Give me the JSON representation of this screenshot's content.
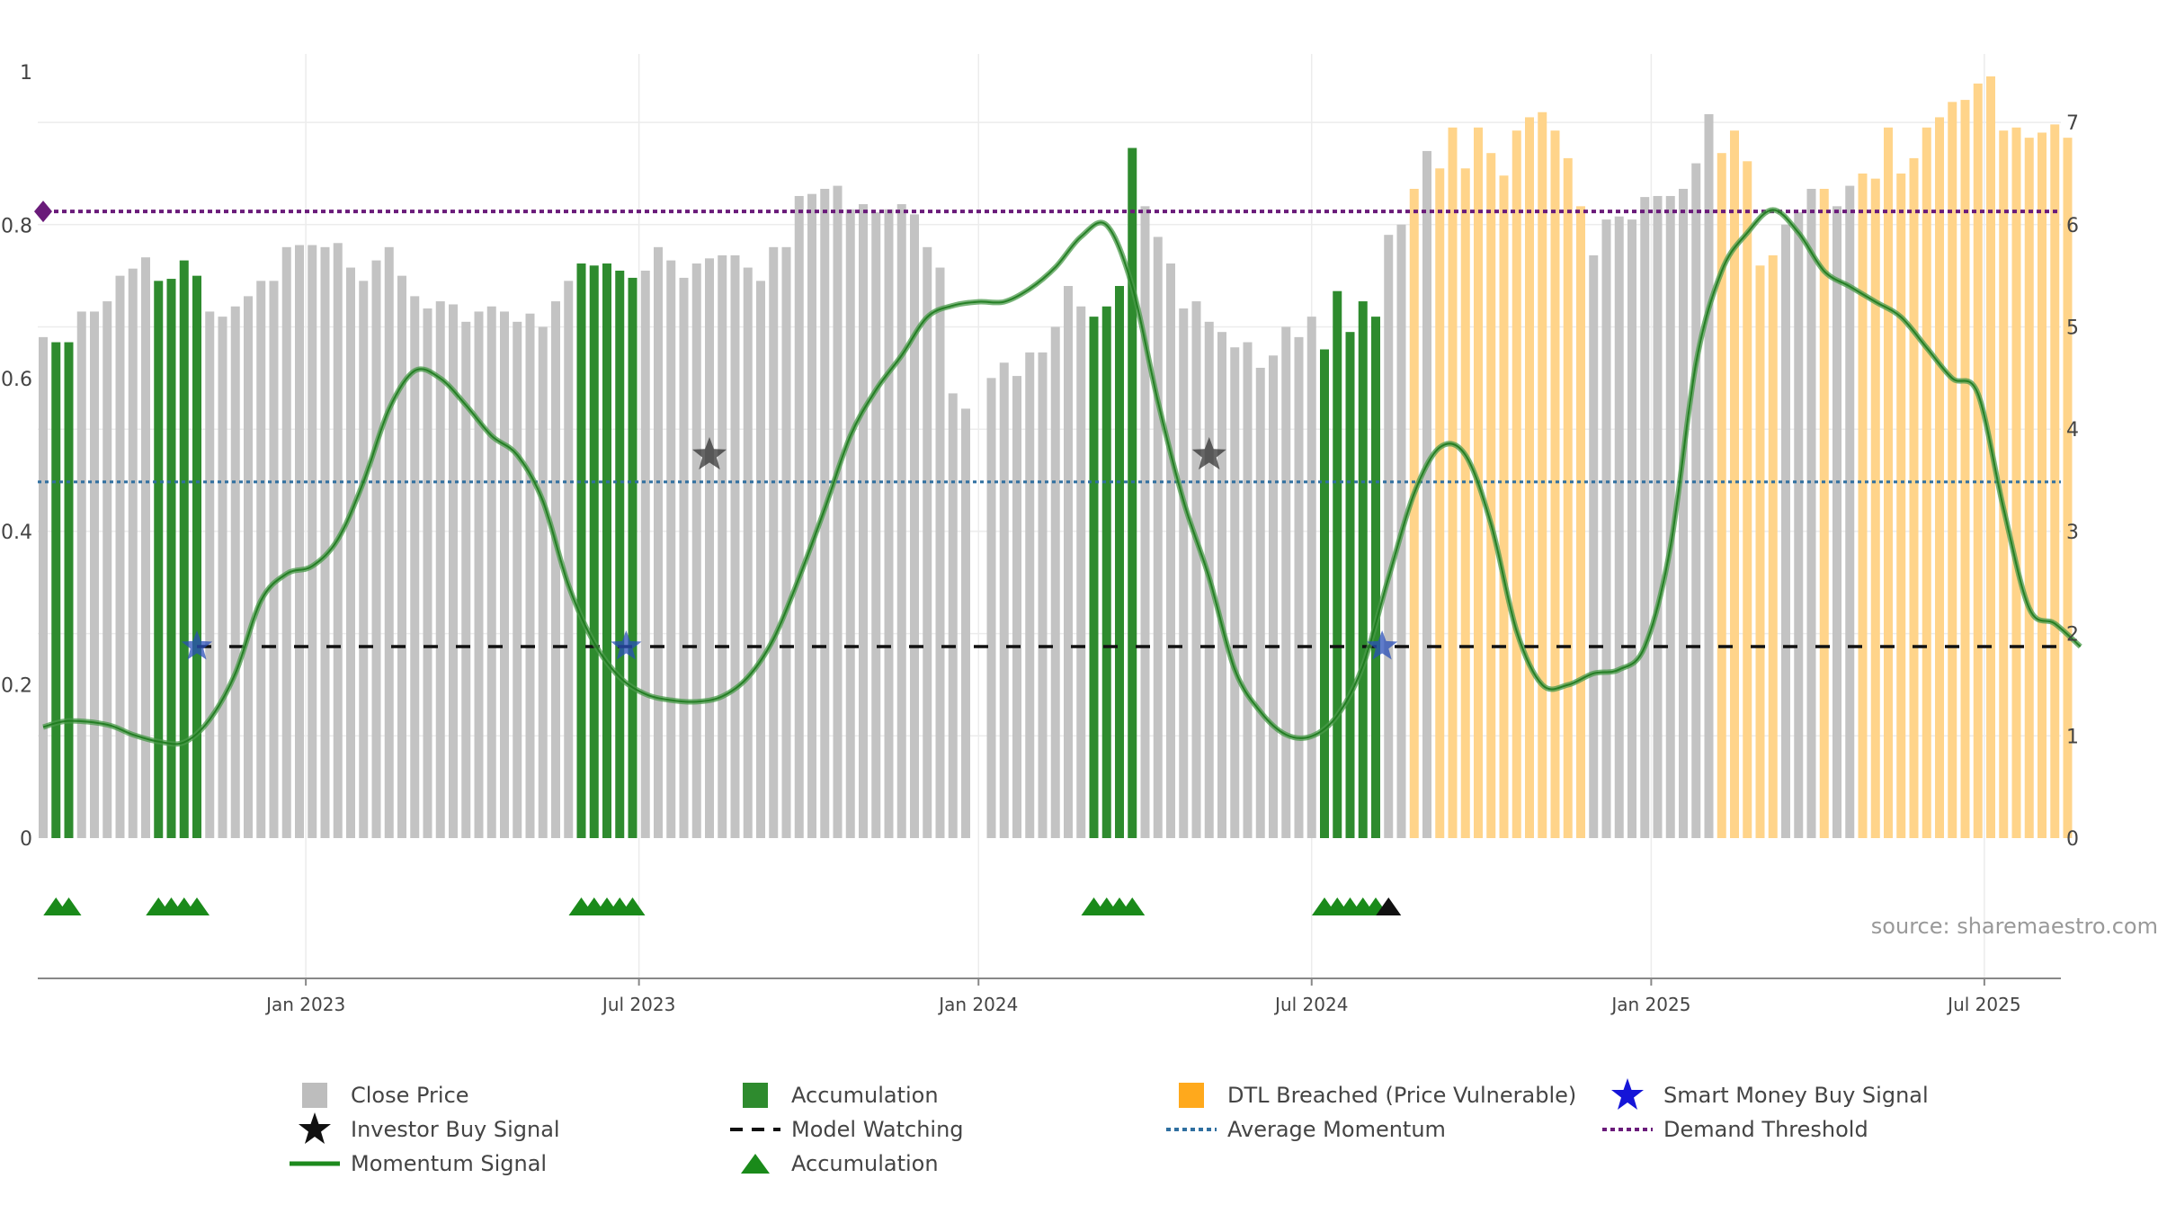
{
  "chart_data": {
    "type": "bar",
    "title": "",
    "xlabel": "",
    "ylabel": "",
    "left_axis": {
      "ticks": [
        "0",
        "0.2",
        "0.4",
        "0.6",
        "0.8",
        "1"
      ],
      "ylim": [
        0,
        1
      ]
    },
    "right_axis": {
      "ticks": [
        "0",
        "1",
        "2",
        "3",
        "4",
        "5",
        "6",
        "7"
      ],
      "ylim": [
        0,
        7.4
      ]
    },
    "x_ticks": [
      {
        "label": "Jan 2023",
        "week": 20.5
      },
      {
        "label": "Jul 2023",
        "week": 46.5
      },
      {
        "label": "Jan 2024",
        "week": 73
      },
      {
        "label": "Jul 2024",
        "week": 99
      },
      {
        "label": "Jan 2025",
        "week": 125.5
      },
      {
        "label": "Jul 2025",
        "week": 151.5
      }
    ],
    "grid": true,
    "colors": {
      "close": "#c3c3c3",
      "accumulation": "#2e8b2e",
      "dtl": "#ffd48a",
      "momentum": "#2e8b2e",
      "average": "#2f6fa0",
      "threshold": "#6a1b7a",
      "watching": "#000000"
    },
    "series": [
      {
        "name": "Close Price",
        "axis": "right",
        "values": [
          4.9,
          4.85,
          4.85,
          5.15,
          5.15,
          5.25,
          5.5,
          5.57,
          5.68,
          5.45,
          5.47,
          5.65,
          5.5,
          5.15,
          5.1,
          5.2,
          5.3,
          5.45,
          5.45,
          5.78,
          5.8,
          5.8,
          5.78,
          5.82,
          5.58,
          5.45,
          5.65,
          5.78,
          5.5,
          5.3,
          5.18,
          5.25,
          5.22,
          5.05,
          5.15,
          5.2,
          5.15,
          5.05,
          5.13,
          5.0,
          5.25,
          5.45,
          5.62,
          5.6,
          5.62,
          5.55,
          5.48,
          5.55,
          5.78,
          5.65,
          5.48,
          5.62,
          5.67,
          5.7,
          5.7,
          5.58,
          5.45,
          5.78,
          5.78,
          6.28,
          6.3,
          6.35,
          6.38,
          6.15,
          6.2,
          6.12,
          6.15,
          6.2,
          6.1,
          5.78,
          5.58,
          4.35,
          4.2,
          0,
          4.5,
          4.65,
          4.52,
          4.75,
          4.75,
          5.0,
          5.4,
          5.2,
          5.1,
          5.2,
          5.4,
          6.75,
          6.18,
          5.88,
          5.62,
          5.18,
          5.25,
          5.05,
          4.95,
          4.8,
          4.85,
          4.6,
          4.72,
          5.0,
          4.9,
          5.1,
          4.78,
          5.35,
          4.95,
          5.25,
          5.1,
          5.9,
          6.0,
          6.35,
          6.72,
          6.55,
          6.95,
          6.55,
          6.95,
          6.7,
          6.48,
          6.92,
          7.05,
          7.1,
          6.92,
          6.65,
          6.18,
          5.7,
          6.05,
          6.08,
          6.05,
          6.27,
          6.28,
          6.28,
          6.35,
          6.6,
          7.08,
          6.7,
          6.92,
          6.62,
          5.6,
          5.7,
          6.0,
          6.12,
          6.35,
          6.35,
          6.18,
          6.38,
          6.5,
          6.45,
          6.95,
          6.5,
          6.65,
          6.95,
          7.05,
          7.2,
          7.22,
          7.38,
          7.45,
          6.92,
          6.95,
          6.85,
          6.9,
          6.98,
          6.85
        ]
      },
      {
        "name": "Accumulation",
        "axis": "right",
        "weeks": [
          1,
          2,
          9,
          10,
          11,
          12,
          42,
          43,
          44,
          45,
          46,
          82,
          83,
          84,
          85,
          100,
          101,
          102,
          103,
          104
        ]
      },
      {
        "name": "DTL Breached (Price Vulnerable)",
        "axis": "right",
        "weeks": [
          85,
          107,
          109,
          110,
          111,
          112,
          113,
          114,
          115,
          116,
          117,
          118,
          119,
          120,
          131,
          132,
          133,
          134,
          135,
          139,
          142,
          143,
          144,
          145,
          146,
          147,
          148,
          149,
          150,
          151,
          152,
          153,
          154,
          155,
          156,
          157,
          158,
          159
        ]
      },
      {
        "name": "Momentum Signal",
        "axis": "left",
        "x": [
          0,
          2,
          5,
          7,
          9,
          11,
          13,
          15,
          17,
          19,
          21,
          23,
          25,
          27,
          29,
          31,
          33,
          35,
          37,
          39,
          41,
          43,
          45,
          47,
          49,
          51,
          53,
          55,
          57,
          59,
          61,
          63,
          65,
          67,
          69,
          71,
          73,
          75,
          77,
          79,
          81,
          83,
          85,
          87,
          89,
          91,
          93,
          95,
          97,
          99,
          101,
          103,
          105,
          107,
          109,
          111,
          113,
          115,
          117,
          119,
          121,
          123,
          125,
          127,
          129,
          131,
          133,
          135,
          137,
          139,
          141,
          143,
          145,
          147,
          149,
          151,
          153,
          155,
          157,
          159
        ],
        "y": [
          0.145,
          0.153,
          0.148,
          0.135,
          0.126,
          0.125,
          0.155,
          0.215,
          0.31,
          0.345,
          0.355,
          0.39,
          0.465,
          0.56,
          0.61,
          0.6,
          0.565,
          0.525,
          0.5,
          0.44,
          0.33,
          0.255,
          0.21,
          0.188,
          0.18,
          0.178,
          0.185,
          0.21,
          0.26,
          0.34,
          0.43,
          0.525,
          0.585,
          0.63,
          0.68,
          0.695,
          0.7,
          0.7,
          0.717,
          0.745,
          0.785,
          0.8,
          0.72,
          0.57,
          0.44,
          0.34,
          0.22,
          0.165,
          0.135,
          0.133,
          0.16,
          0.225,
          0.34,
          0.45,
          0.51,
          0.5,
          0.41,
          0.27,
          0.2,
          0.2,
          0.215,
          0.22,
          0.25,
          0.38,
          0.62,
          0.74,
          0.79,
          0.82,
          0.79,
          0.74,
          0.72,
          0.7,
          0.68,
          0.64,
          0.6,
          0.58,
          0.43,
          0.3,
          0.28,
          0.25
        ]
      },
      {
        "name": "Average Momentum",
        "axis": "left",
        "value": 0.465
      },
      {
        "name": "Demand Threshold",
        "axis": "left",
        "value": 0.818
      },
      {
        "name": "Model Watching",
        "axis": "left",
        "value": 0.25,
        "from_week": 12
      },
      {
        "name": "Smart Money Buy Signal",
        "axis": "left",
        "weeks": [
          12,
          45.5,
          104.5
        ],
        "value": 0.25
      },
      {
        "name": "Investor Buy Signal",
        "axis": "left",
        "weeks": [
          52,
          91
        ],
        "value": 0.5
      },
      {
        "name": "Accumulation",
        "marker": "triangle",
        "weeks": [
          1,
          2,
          9,
          10,
          11,
          12,
          42,
          43,
          44,
          45,
          46,
          82,
          83,
          84,
          85,
          100,
          101,
          102,
          103,
          104
        ],
        "black_weeks": [
          105
        ]
      }
    ]
  },
  "legend": [
    {
      "label": "Close Price",
      "icon": "gray-square"
    },
    {
      "label": "Accumulation",
      "icon": "green-square"
    },
    {
      "label": "DTL Breached (Price Vulnerable)",
      "icon": "orange-square"
    },
    {
      "label": "Smart Money Buy Signal",
      "icon": "blue-star"
    },
    {
      "label": "Investor Buy Signal",
      "icon": "black-star"
    },
    {
      "label": "Model Watching",
      "icon": "black-dashed-line"
    },
    {
      "label": "Average Momentum",
      "icon": "blue-dotted-line"
    },
    {
      "label": "Demand Threshold",
      "icon": "purple-dotted-line"
    },
    {
      "label": "Momentum Signal",
      "icon": "green-line"
    },
    {
      "label": "Accumulation",
      "icon": "green-triangle"
    }
  ],
  "source": "source: sharemaestro.com"
}
